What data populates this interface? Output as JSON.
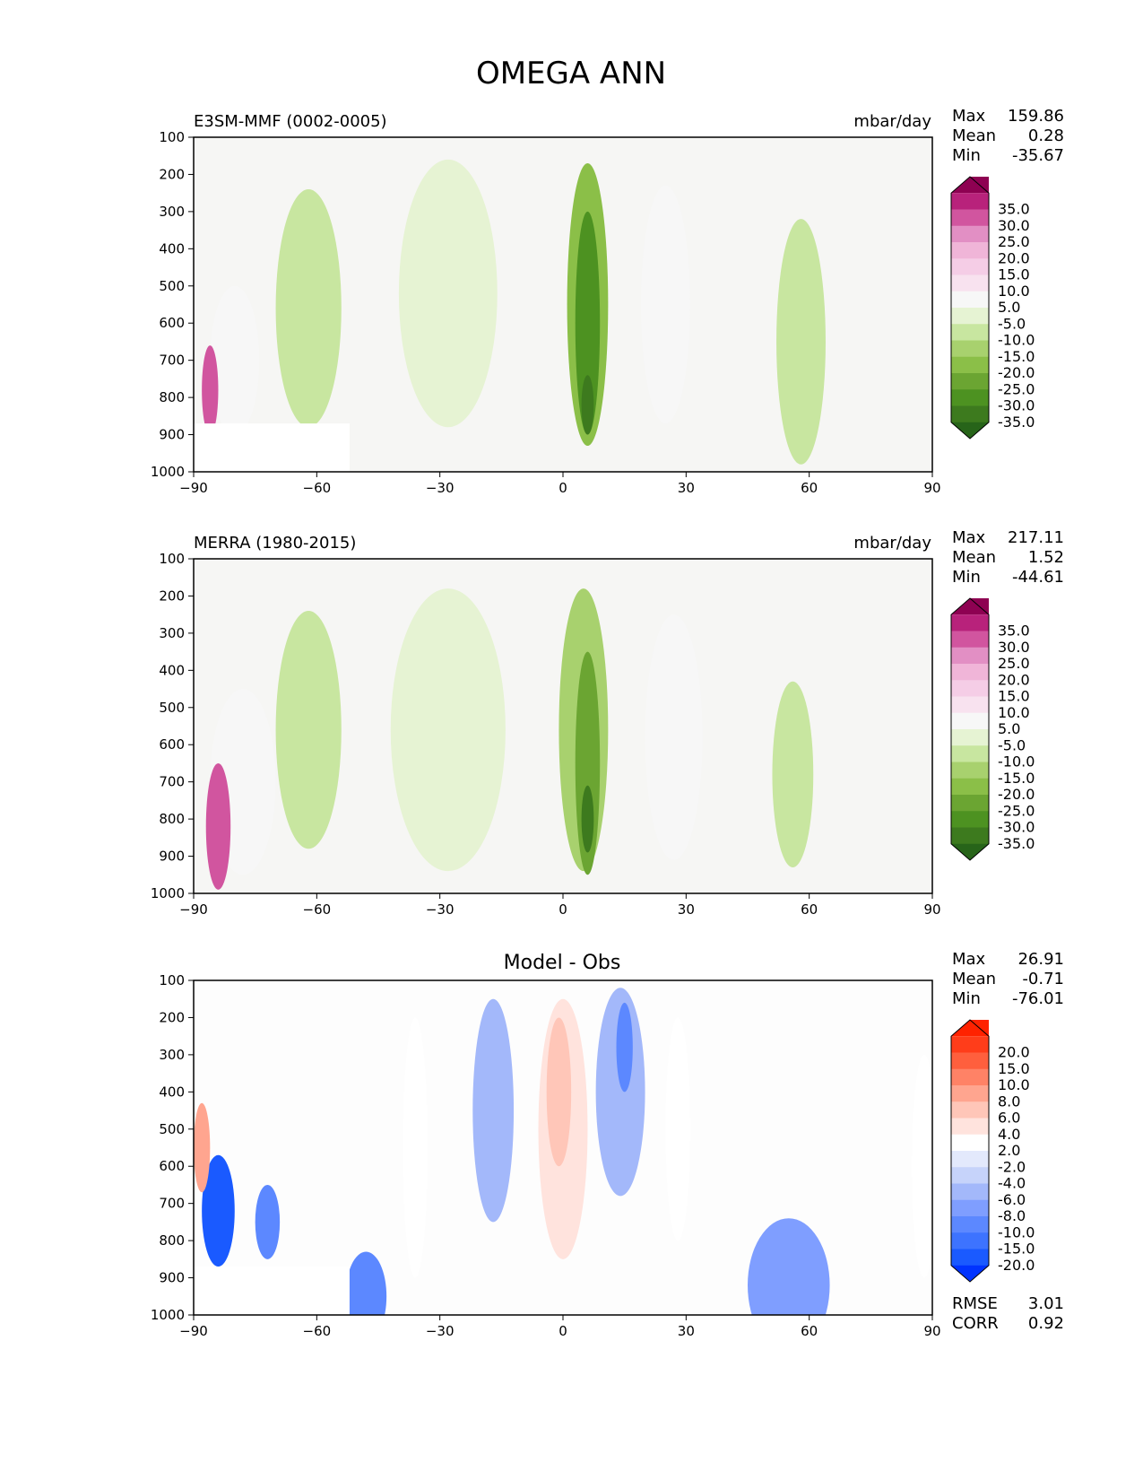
{
  "title": "OMEGA ANN",
  "y_ticks": [
    "100",
    "200",
    "300",
    "400",
    "500",
    "600",
    "700",
    "800",
    "900",
    "1000"
  ],
  "x_ticks": [
    "−90",
    "−60",
    "−30",
    "0",
    "30",
    "60",
    "90"
  ],
  "chart_data": [
    {
      "type": "contour",
      "panel": "test",
      "left_title": "E3SM-MMF (0002-0005)",
      "right_title": "mbar/day",
      "xlim": [
        -90,
        90
      ],
      "ylim": [
        1000,
        100
      ],
      "stats": [
        {
          "label": "Max",
          "value": "159.86"
        },
        {
          "label": "Mean",
          "value": "0.28"
        },
        {
          "label": "Min",
          "value": "-35.67"
        }
      ],
      "colorbar_levels": [
        "35.0",
        "30.0",
        "25.0",
        "20.0",
        "15.0",
        "10.0",
        "5.0",
        "-5.0",
        "-10.0",
        "-15.0",
        "-20.0",
        "-25.0",
        "-30.0",
        "-35.0"
      ],
      "features": [
        {
          "kind": "ellipse",
          "lat": -28,
          "p": 550,
          "rlat": 8,
          "rp": 280,
          "level": 8
        },
        {
          "kind": "ellipse",
          "lat": -28,
          "p": 520,
          "rlat": 12,
          "rp": 360,
          "level": 7
        },
        {
          "kind": "ellipse",
          "lat": 6,
          "p": 550,
          "rlat": 5,
          "rp": 380,
          "level": 4
        },
        {
          "kind": "ellipse",
          "lat": 6,
          "p": 600,
          "rlat": 3,
          "rp": 300,
          "level": 2
        },
        {
          "kind": "ellipse",
          "lat": 6,
          "p": 820,
          "rlat": 1.5,
          "rp": 80,
          "level": 1
        },
        {
          "kind": "ellipse",
          "lat": -62,
          "p": 580,
          "rlat": 4,
          "rp": 260,
          "level": 5
        },
        {
          "kind": "ellipse",
          "lat": -62,
          "p": 560,
          "rlat": 8,
          "rp": 320,
          "level": 6
        },
        {
          "kind": "ellipse",
          "lat": 25,
          "p": 550,
          "rlat": 6,
          "rp": 320,
          "level": 8
        },
        {
          "kind": "ellipse",
          "lat": 58,
          "p": 650,
          "rlat": 6,
          "rp": 330,
          "level": 6
        },
        {
          "kind": "ellipse",
          "lat": -80,
          "p": 700,
          "rlat": 6,
          "rp": 200,
          "level": 8
        },
        {
          "kind": "ellipse",
          "lat": -86,
          "p": 780,
          "rlat": 2,
          "rp": 120,
          "level": 13
        }
      ]
    },
    {
      "type": "contour",
      "panel": "reference",
      "left_title": "MERRA (1980-2015)",
      "right_title": "mbar/day",
      "xlim": [
        -90,
        90
      ],
      "ylim": [
        1000,
        100
      ],
      "stats": [
        {
          "label": "Max",
          "value": "217.11"
        },
        {
          "label": "Mean",
          "value": "1.52"
        },
        {
          "label": "Min",
          "value": "-44.61"
        }
      ],
      "colorbar_levels": [
        "35.0",
        "30.0",
        "25.0",
        "20.0",
        "15.0",
        "10.0",
        "5.0",
        "-5.0",
        "-10.0",
        "-15.0",
        "-20.0",
        "-25.0",
        "-30.0",
        "-35.0"
      ],
      "features": [
        {
          "kind": "ellipse",
          "lat": -28,
          "p": 600,
          "rlat": 8,
          "rp": 260,
          "level": 8
        },
        {
          "kind": "ellipse",
          "lat": -28,
          "p": 560,
          "rlat": 14,
          "rp": 380,
          "level": 7
        },
        {
          "kind": "ellipse",
          "lat": 5,
          "p": 560,
          "rlat": 6,
          "rp": 380,
          "level": 5
        },
        {
          "kind": "ellipse",
          "lat": 6,
          "p": 650,
          "rlat": 3,
          "rp": 300,
          "level": 3
        },
        {
          "kind": "ellipse",
          "lat": 6,
          "p": 800,
          "rlat": 1.5,
          "rp": 90,
          "level": 1
        },
        {
          "kind": "ellipse",
          "lat": -62,
          "p": 580,
          "rlat": 4,
          "rp": 260,
          "level": 5
        },
        {
          "kind": "ellipse",
          "lat": -62,
          "p": 560,
          "rlat": 8,
          "rp": 320,
          "level": 6
        },
        {
          "kind": "ellipse",
          "lat": 27,
          "p": 580,
          "rlat": 7,
          "rp": 330,
          "level": 8
        },
        {
          "kind": "ellipse",
          "lat": 56,
          "p": 680,
          "rlat": 5,
          "rp": 250,
          "level": 6
        },
        {
          "kind": "ellipse",
          "lat": -78,
          "p": 700,
          "rlat": 8,
          "rp": 250,
          "level": 8
        },
        {
          "kind": "ellipse",
          "lat": -84,
          "p": 820,
          "rlat": 3,
          "rp": 170,
          "level": 13
        }
      ]
    },
    {
      "type": "contour",
      "panel": "difference",
      "center_title": "Model - Obs",
      "xlim": [
        -90,
        90
      ],
      "ylim": [
        1000,
        100
      ],
      "stats": [
        {
          "label": "Max",
          "value": "26.91"
        },
        {
          "label": "Mean",
          "value": "-0.71"
        },
        {
          "label": "Min",
          "value": "-76.01"
        }
      ],
      "metrics": [
        {
          "label": "RMSE",
          "value": "3.01"
        },
        {
          "label": "CORR",
          "value": "0.92"
        }
      ],
      "colorbar_levels": [
        "20.0",
        "15.0",
        "10.0",
        "8.0",
        "6.0",
        "4.0",
        "2.0",
        "-2.0",
        "-4.0",
        "-6.0",
        "-8.0",
        "-10.0",
        "-15.0",
        "-20.0"
      ],
      "features": [
        {
          "kind": "ellipse",
          "lat": 0,
          "p": 500,
          "rlat": 6,
          "rp": 350,
          "level": 9
        },
        {
          "kind": "ellipse",
          "lat": -1,
          "p": 400,
          "rlat": 3,
          "rp": 200,
          "level": 10
        },
        {
          "kind": "ellipse",
          "lat": -17,
          "p": 450,
          "rlat": 5,
          "rp": 300,
          "level": 5
        },
        {
          "kind": "ellipse",
          "lat": 14,
          "p": 400,
          "rlat": 6,
          "rp": 280,
          "level": 5
        },
        {
          "kind": "ellipse",
          "lat": 15,
          "p": 280,
          "rlat": 2,
          "rp": 120,
          "level": 3
        },
        {
          "kind": "ellipse",
          "lat": -36,
          "p": 550,
          "rlat": 3,
          "rp": 350,
          "level": 8
        },
        {
          "kind": "ellipse",
          "lat": 28,
          "p": 500,
          "rlat": 3,
          "rp": 300,
          "level": 8
        },
        {
          "kind": "ellipse",
          "lat": 55,
          "p": 920,
          "rlat": 10,
          "rp": 180,
          "level": 4
        },
        {
          "kind": "ellipse",
          "lat": -48,
          "p": 950,
          "rlat": 5,
          "rp": 120,
          "level": 3
        },
        {
          "kind": "ellipse",
          "lat": -84,
          "p": 720,
          "rlat": 4,
          "rp": 150,
          "level": 1
        },
        {
          "kind": "ellipse",
          "lat": -72,
          "p": 750,
          "rlat": 3,
          "rp": 100,
          "level": 3
        },
        {
          "kind": "ellipse",
          "lat": -88,
          "p": 550,
          "rlat": 2,
          "rp": 120,
          "level": 11
        },
        {
          "kind": "ellipse",
          "lat": 88,
          "p": 600,
          "rlat": 3,
          "rp": 300,
          "level": 8
        }
      ]
    }
  ],
  "palettes": {
    "omega": [
      "#276419",
      "#3d7a1e",
      "#4d9221",
      "#6ba532",
      "#8bbf48",
      "#a8d16e",
      "#c8e6a0",
      "#e6f3d3",
      "#f7f7f7",
      "#f8e2ef",
      "#f5cde6",
      "#f0b5d8",
      "#e28fc4",
      "#d1559f",
      "#b8227b",
      "#8e0152"
    ],
    "diff": [
      "#0033ff",
      "#1a5aff",
      "#3d73ff",
      "#5c88ff",
      "#7f9eff",
      "#a3b8fa",
      "#c6d3fa",
      "#e3e9fc",
      "#ffffff",
      "#ffe3dd",
      "#ffc6b8",
      "#ffa58f",
      "#ff8266",
      "#ff5f3d",
      "#ff3d1a",
      "#ff2200"
    ]
  }
}
